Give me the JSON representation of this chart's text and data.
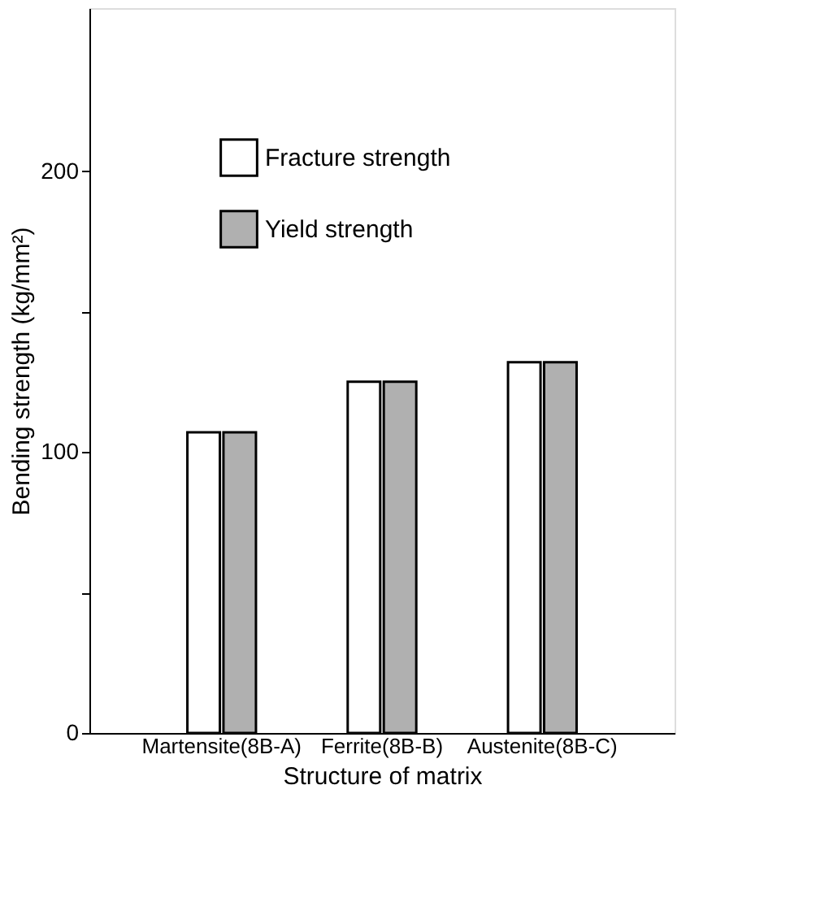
{
  "chart_data": {
    "type": "bar",
    "xlabel": "Structure of matrix",
    "ylabel": "Bending strength (kg/mm²)",
    "categories": [
      "Martensite(8B-A)",
      "Ferrite(8B-B)",
      "Austenite(8B-C)"
    ],
    "series": [
      {
        "name": "Fracture strength",
        "color": "#ffffff",
        "values": [
          107,
          125,
          132
        ]
      },
      {
        "name": "Yield strength",
        "color": "#b0b0b0",
        "values": [
          107,
          125,
          132
        ]
      }
    ],
    "ylim": [
      0,
      258
    ],
    "yticks": [
      0,
      {
        "value": 50,
        "label": null
      },
      100,
      {
        "value": 150,
        "label": null
      },
      200
    ],
    "grid": false,
    "legend": "top left"
  }
}
